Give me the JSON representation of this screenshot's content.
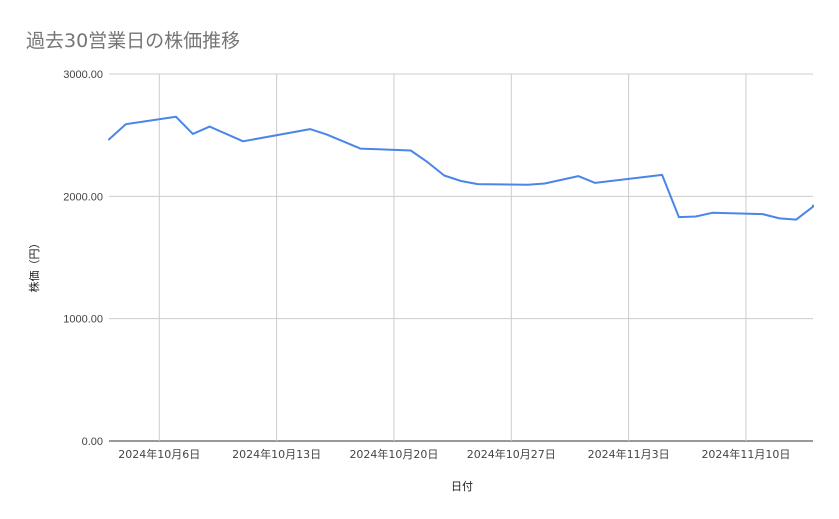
{
  "chart_data": {
    "type": "line",
    "title": "過去30営業日の株価推移",
    "xlabel": "日付",
    "ylabel": "株価（円）",
    "ylim": [
      0,
      3000
    ],
    "yticks": [
      0,
      1000,
      2000,
      3000
    ],
    "ytick_labels": [
      "0.00",
      "1000.00",
      "2000.00",
      "3000.00"
    ],
    "xticks": [
      {
        "date": "2024-10-06",
        "label": "2024年10月6日"
      },
      {
        "date": "2024-10-13",
        "label": "2024年10月13日"
      },
      {
        "date": "2024-10-20",
        "label": "2024年10月20日"
      },
      {
        "date": "2024-10-27",
        "label": "2024年10月27日"
      },
      {
        "date": "2024-11-03",
        "label": "2024年11月3日"
      },
      {
        "date": "2024-11-10",
        "label": "2024年11月10日"
      }
    ],
    "xlim": [
      "2024-10-03",
      "2024-11-14"
    ],
    "grid": true,
    "series": [
      {
        "color": "#4a86e8",
        "points": [
          {
            "x": "2024-10-03",
            "y": 2465
          },
          {
            "x": "2024-10-04",
            "y": 2590
          },
          {
            "x": "2024-10-07",
            "y": 2650
          },
          {
            "x": "2024-10-08",
            "y": 2510
          },
          {
            "x": "2024-10-09",
            "y": 2570
          },
          {
            "x": "2024-10-11",
            "y": 2450
          },
          {
            "x": "2024-10-15",
            "y": 2550
          },
          {
            "x": "2024-10-16",
            "y": 2505
          },
          {
            "x": "2024-10-18",
            "y": 2390
          },
          {
            "x": "2024-10-21",
            "y": 2375
          },
          {
            "x": "2024-10-22",
            "y": 2280
          },
          {
            "x": "2024-10-23",
            "y": 2170
          },
          {
            "x": "2024-10-24",
            "y": 2125
          },
          {
            "x": "2024-10-25",
            "y": 2100
          },
          {
            "x": "2024-10-28",
            "y": 2095
          },
          {
            "x": "2024-10-29",
            "y": 2105
          },
          {
            "x": "2024-10-31",
            "y": 2165
          },
          {
            "x": "2024-11-01",
            "y": 2110
          },
          {
            "x": "2024-11-05",
            "y": 2175
          },
          {
            "x": "2024-11-06",
            "y": 1830
          },
          {
            "x": "2024-11-07",
            "y": 1835
          },
          {
            "x": "2024-11-08",
            "y": 1865
          },
          {
            "x": "2024-11-11",
            "y": 1855
          },
          {
            "x": "2024-11-12",
            "y": 1820
          },
          {
            "x": "2024-11-13",
            "y": 1810
          },
          {
            "x": "2024-11-14",
            "y": 1915
          },
          {
            "x": "2024-11-15",
            "y": 1925
          }
        ]
      }
    ]
  }
}
